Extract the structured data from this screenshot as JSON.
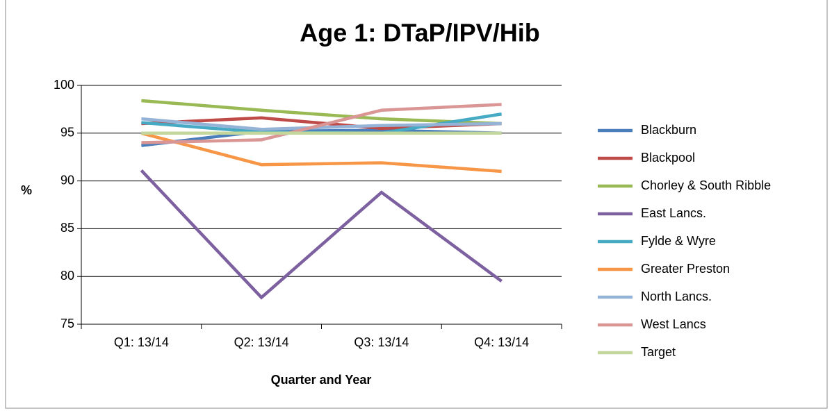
{
  "chart_data": {
    "type": "line",
    "title": "Age 1: DTaP/IPV/Hib",
    "x_label": "Quarter and Year",
    "y_label": "%",
    "categories": [
      "Q1: 13/14",
      "Q2: 13/14",
      "Q3: 13/14",
      "Q4: 13/14"
    ],
    "ylim": [
      75,
      100
    ],
    "yticks": [
      75,
      80,
      85,
      90,
      95,
      100
    ],
    "grid": true,
    "legend": "right",
    "series": [
      {
        "name": "Blackburn",
        "color": "#4a7ebb",
        "values": [
          93.7,
          95.2,
          95.3,
          95.0
        ]
      },
      {
        "name": "Blackpool",
        "color": "#be4b48",
        "values": [
          96.0,
          96.6,
          95.5,
          96.0
        ]
      },
      {
        "name": "Chorley & South Ribble",
        "color": "#98b954",
        "values": [
          98.4,
          97.4,
          96.5,
          96.0
        ]
      },
      {
        "name": "East Lancs.",
        "color": "#7d60a0",
        "values": [
          91.1,
          77.8,
          88.8,
          79.5
        ]
      },
      {
        "name": "Fylde & Wyre",
        "color": "#46aac5",
        "values": [
          96.1,
          95.1,
          95.0,
          97.0
        ]
      },
      {
        "name": "Greater Preston",
        "color": "#f79646",
        "values": [
          95.0,
          91.7,
          91.9,
          91.0
        ]
      },
      {
        "name": "North Lancs.",
        "color": "#95b3d7",
        "values": [
          96.5,
          95.4,
          95.8,
          96.0
        ]
      },
      {
        "name": "West Lancs",
        "color": "#d99694",
        "values": [
          94.0,
          94.3,
          97.4,
          98.0
        ]
      },
      {
        "name": "Target",
        "color": "#c3d69b",
        "values": [
          95,
          95,
          95,
          95
        ]
      }
    ]
  }
}
